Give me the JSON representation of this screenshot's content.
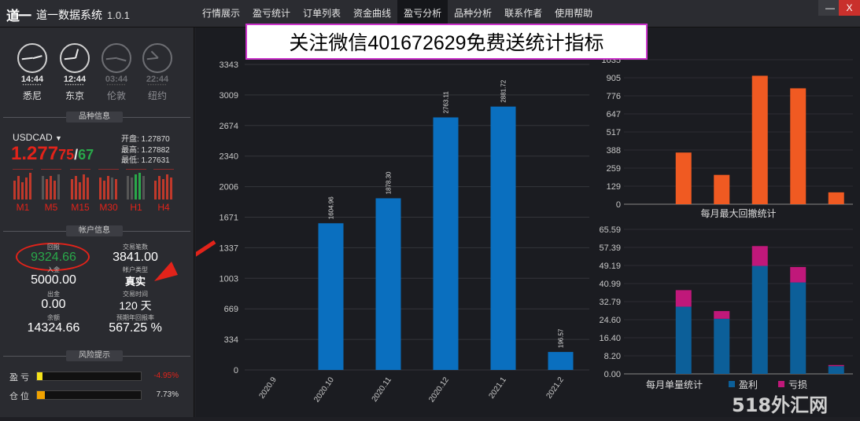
{
  "app": {
    "logo_text": "道一",
    "title": "道一数据系统",
    "version": "1.0.1"
  },
  "menu": [
    "行情展示",
    "盈亏统计",
    "订单列表",
    "资金曲线",
    "盈亏分析",
    "品种分析",
    "联系作者",
    "使用帮助"
  ],
  "active_menu": "盈亏分析",
  "window": {
    "minimize": "—",
    "close": "X"
  },
  "clocks": [
    {
      "time": "14:44",
      "city": "悉尼",
      "active": true
    },
    {
      "time": "12:44",
      "city": "东京",
      "active": true
    },
    {
      "time": "03:44",
      "city": "伦敦",
      "active": false
    },
    {
      "time": "22:44",
      "city": "纽约",
      "active": false
    }
  ],
  "product": {
    "section_title": "品种信息",
    "symbol": "USDCAD",
    "price_main": "1.277",
    "price_small1": "75",
    "price_slash": "/",
    "price_small2": "67",
    "open": "开盘: 1.27870",
    "high": "最高: 1.27882",
    "low": "最低: 1.27631",
    "timeframes": [
      "M1",
      "M5",
      "M15",
      "M30",
      "H1",
      "H4"
    ]
  },
  "account": {
    "section_title": "帐户信息",
    "return_label": "回报",
    "return_value": "9324.66",
    "deposit_label": "入金",
    "deposit_value": "5000.00",
    "withdraw_label": "出金",
    "withdraw_value": "0.00",
    "balance_label": "余额",
    "balance_value": "14324.66",
    "trades_label": "交易笔数",
    "trades_value": "3841.00",
    "type_label": "帐户类型",
    "type_value": "真实",
    "duration_label": "交易时间",
    "duration_value": "120 天",
    "annual_label": "预期年回报率",
    "annual_value": "567.25 %"
  },
  "risk": {
    "section_title": "风险提示",
    "pl_label": "盈 亏",
    "pl_value": "-4.95%",
    "pl_fill": 0.05,
    "pos_label": "仓 位",
    "pos_value": "7.73%",
    "pos_fill": 0.077
  },
  "promo_text": "关注微信401672629免费送统计指标",
  "watermark": "518外汇网",
  "colors": {
    "accent_blue": "#0a6fbf",
    "orange": "#f05a22",
    "steel_blue": "#0c5f99",
    "magenta": "#c0187a",
    "red": "#e2231a",
    "green": "#29a84a"
  },
  "chart_data": [
    {
      "type": "bar",
      "categories": [
        "2020.9",
        "2020.10",
        "2020.11",
        "2020.12",
        "2021.1",
        "2021.2"
      ],
      "values": [
        0,
        1604.96,
        1878.3,
        2763.11,
        2881.72,
        196.57
      ],
      "value_labels": [
        "",
        "1604.96",
        "1878.30",
        "2763.11",
        "2881.72",
        "196.57"
      ],
      "yticks": [
        "0",
        "334",
        "669",
        "1003",
        "1337",
        "1671",
        "2006",
        "2340",
        "2674",
        "3009",
        "3343"
      ],
      "ylim": [
        0,
        3343
      ],
      "title": "",
      "xlabel": "",
      "ylabel": ""
    },
    {
      "type": "bar",
      "title": "每月最大回撤统计",
      "values": [
        0,
        370,
        210,
        920,
        830,
        85
      ],
      "yticks": [
        "0",
        "129",
        "259",
        "388",
        "517",
        "647",
        "776",
        "905",
        "1035"
      ],
      "ylim": [
        0,
        1035
      ]
    },
    {
      "type": "bar",
      "stacked": true,
      "title": "每月单量统计",
      "series": [
        {
          "name": "盈利",
          "values": [
            0,
            30.5,
            25,
            49,
            41.5,
            3.5
          ]
        },
        {
          "name": "亏损",
          "values": [
            0,
            7.5,
            3.5,
            9,
            7,
            0.5
          ]
        }
      ],
      "yticks": [
        "0.00",
        "8.20",
        "16.40",
        "24.60",
        "32.79",
        "40.99",
        "49.19",
        "57.39",
        "65.59"
      ],
      "ylim": [
        0,
        65.59
      ]
    }
  ]
}
